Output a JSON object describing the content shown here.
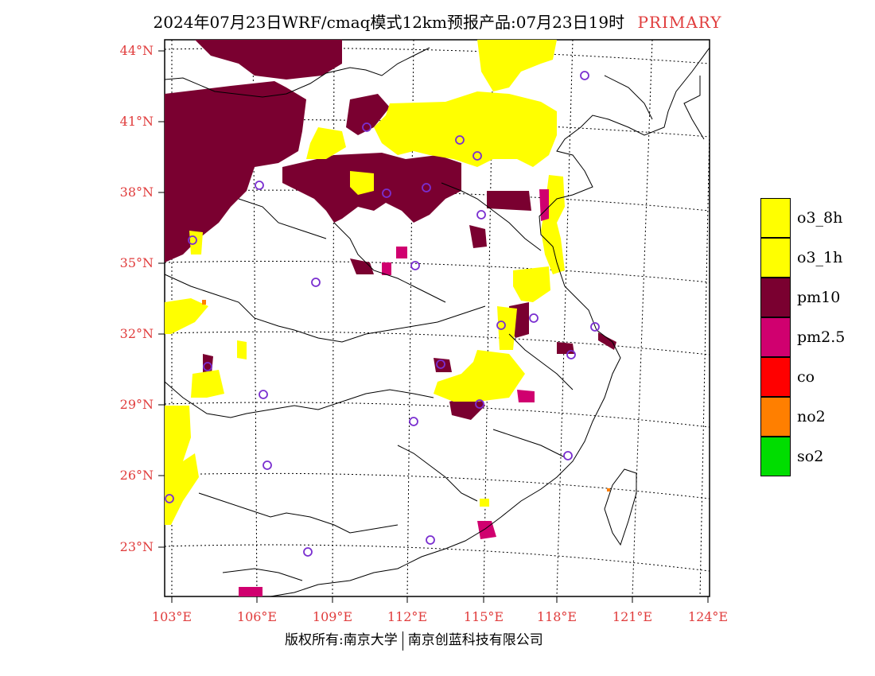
{
  "title": {
    "main": "2024年07月23日WRF/cmaq模式12km预报产品:07月23日19时",
    "tag": "PRIMARY"
  },
  "axes": {
    "lat_labels": [
      "44°N",
      "41°N",
      "38°N",
      "35°N",
      "32°N",
      "29°N",
      "26°N",
      "23°N"
    ],
    "lon_labels": [
      "103°E",
      "106°E",
      "109°E",
      "112°E",
      "115°E",
      "118°E",
      "121°E",
      "124°E"
    ]
  },
  "legend": [
    {
      "label": "o3_8h",
      "color": "#ffff00"
    },
    {
      "label": "o3_1h",
      "color": "#ffff00"
    },
    {
      "label": "pm10",
      "color": "#7a0030"
    },
    {
      "label": "pm2.5",
      "color": "#d0006f"
    },
    {
      "label": "co",
      "color": "#ff0000"
    },
    {
      "label": "no2",
      "color": "#ff7f00"
    },
    {
      "label": "so2",
      "color": "#00dd00"
    }
  ],
  "footer": {
    "left": "版权所有:南京大学",
    "right": "南京创蓝科技有限公司"
  },
  "colors": {
    "axis_label": "#e03c3c",
    "station_marker": "#7a2fd0"
  }
}
